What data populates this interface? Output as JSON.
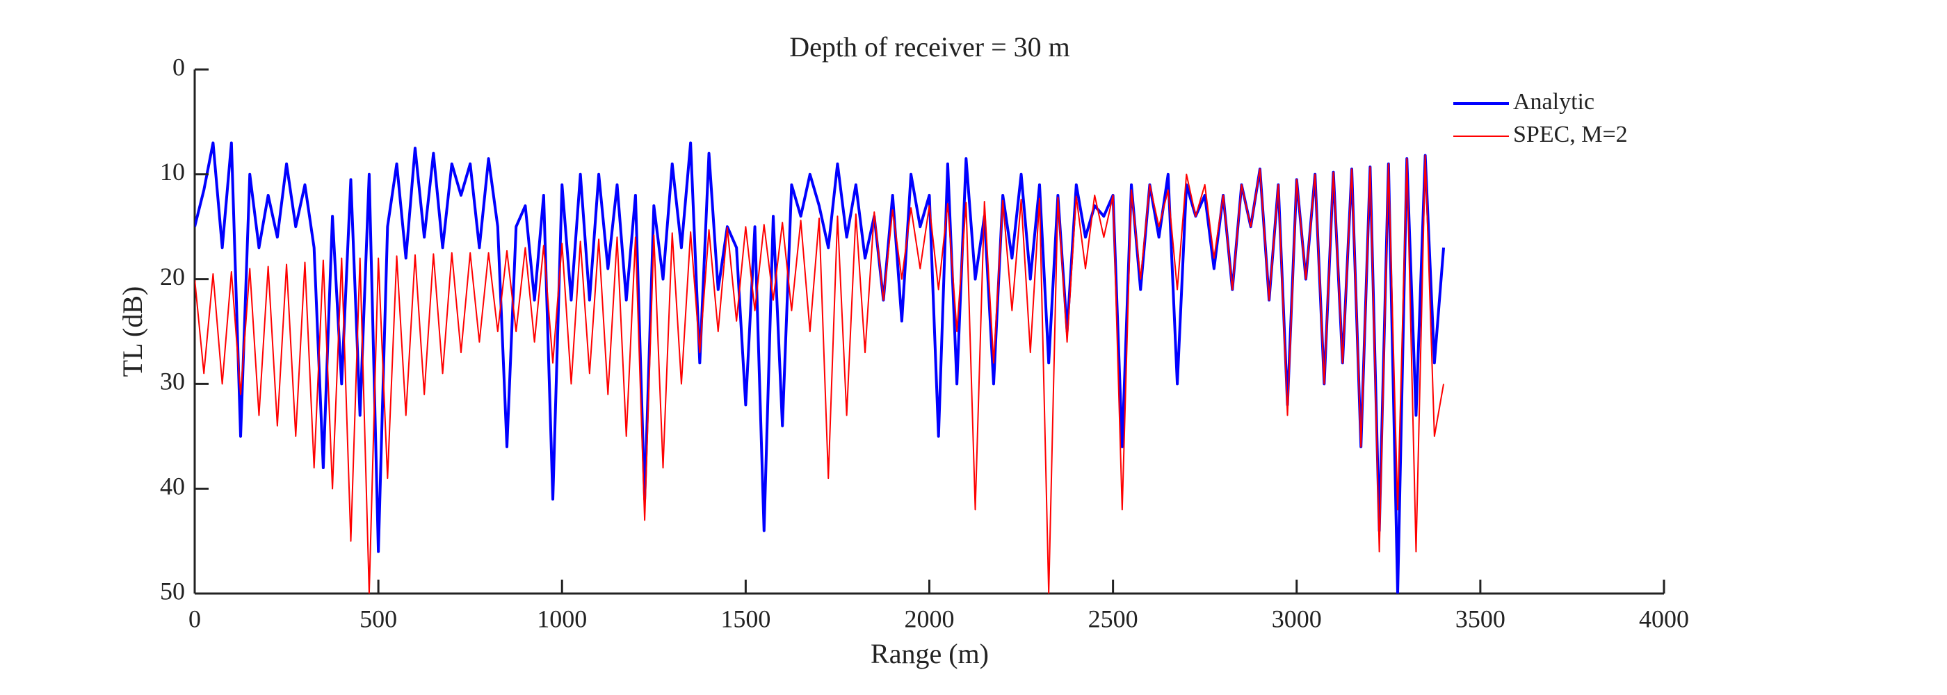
{
  "chart_data": {
    "type": "line",
    "title": "Depth of receiver = 30 m",
    "xlabel": "Range (m)",
    "ylabel": "TL (dB)",
    "x": [
      0,
      25,
      50,
      75,
      100,
      125,
      150,
      175,
      200,
      225,
      250,
      275,
      300,
      325,
      350,
      375,
      400,
      425,
      450,
      475,
      500,
      525,
      550,
      575,
      600,
      625,
      650,
      675,
      700,
      725,
      750,
      775,
      800,
      825,
      850,
      875,
      900,
      925,
      950,
      975,
      1000,
      1025,
      1050,
      1075,
      1100,
      1125,
      1150,
      1175,
      1200,
      1225,
      1250,
      1275,
      1300,
      1325,
      1350,
      1375,
      1400,
      1425,
      1450,
      1475,
      1500,
      1525,
      1550,
      1575,
      1600,
      1625,
      1650,
      1675,
      1700,
      1725,
      1750,
      1775,
      1800,
      1825,
      1850,
      1875,
      1900,
      1925,
      1950,
      1975,
      2000,
      2025,
      2050,
      2075,
      2100,
      2125,
      2150,
      2175,
      2200,
      2225,
      2250,
      2275,
      2300,
      2325,
      2350,
      2375,
      2400,
      2425,
      2450,
      2475,
      2500,
      2525,
      2550,
      2575,
      2600,
      2625,
      2650,
      2675,
      2700,
      2725,
      2750,
      2775,
      2800,
      2825,
      2850,
      2875,
      2900,
      2925,
      2950,
      2975,
      3000,
      3025,
      3050,
      3075,
      3100,
      3125,
      3150,
      3175,
      3200,
      3225,
      3250,
      3275,
      3300,
      3325,
      3350,
      3375,
      3400
    ],
    "series": [
      {
        "name": "Analytic",
        "color": "#0000ff",
        "line_width": 4,
        "values": [
          15,
          11.5,
          7,
          17,
          7,
          35,
          10,
          17,
          12,
          16,
          9,
          15,
          11,
          17,
          38,
          14,
          30,
          10.5,
          33,
          10,
          46,
          15,
          9,
          18,
          7.5,
          16,
          8,
          17,
          9,
          12,
          9,
          17,
          8.5,
          15,
          36,
          15,
          13,
          22,
          12,
          41,
          11,
          22,
          10,
          22,
          10,
          19,
          11,
          22,
          12,
          41,
          13,
          20,
          9,
          17,
          7,
          28,
          8,
          21,
          15,
          17,
          32,
          15,
          44,
          14,
          34,
          11,
          14,
          10,
          13,
          17,
          9,
          16,
          11,
          18,
          14,
          22,
          12,
          24,
          10,
          15,
          12,
          35,
          9,
          30,
          8.5,
          20,
          14,
          30,
          12,
          18,
          10,
          20,
          11,
          28,
          12,
          25,
          11,
          16,
          13,
          14,
          12,
          36,
          11,
          21,
          11,
          16,
          10,
          30,
          11,
          14,
          12,
          19,
          12,
          21,
          11,
          15,
          9.5,
          22,
          11,
          32,
          10.5,
          20,
          10,
          30,
          9.8,
          28,
          9.5,
          36,
          9.3,
          44,
          9,
          50,
          8.5,
          33,
          8.2,
          28,
          17
        ]
      },
      {
        "name": "SPEC, M=2",
        "color": "#ff0000",
        "line_width": 2,
        "values": [
          20,
          29,
          19.5,
          30,
          19.3,
          31,
          19,
          33,
          18.8,
          34,
          18.6,
          35,
          18.4,
          38,
          18.2,
          40,
          18,
          45,
          18,
          50,
          18,
          39,
          17.8,
          33,
          17.7,
          31,
          17.6,
          29,
          17.5,
          27,
          17.5,
          26,
          17.5,
          25,
          17.3,
          25,
          17,
          26,
          16.8,
          28,
          16.6,
          30,
          16.4,
          29,
          16.2,
          31,
          16,
          35,
          16,
          43,
          15.8,
          38,
          15.6,
          30,
          15.5,
          27,
          15.3,
          25,
          15.1,
          24,
          15,
          23,
          14.8,
          22,
          14.6,
          23,
          14.4,
          25,
          14.2,
          39,
          14,
          33,
          13.8,
          27,
          13.6,
          22,
          13.4,
          20,
          13.2,
          19,
          13,
          21,
          12.8,
          25,
          12.7,
          42,
          12.6,
          28,
          12.5,
          23,
          12.4,
          27,
          12.3,
          50,
          12.2,
          26,
          12.1,
          19,
          12,
          16,
          12,
          42,
          11.5,
          20,
          11,
          15,
          11.5,
          21,
          10,
          14,
          11,
          18,
          12,
          21,
          11,
          15,
          9.5,
          22,
          11,
          33,
          10.5,
          20,
          10,
          30,
          9.8,
          28,
          9.5,
          36,
          9.3,
          46,
          9,
          42,
          8.5,
          46,
          8.2,
          35,
          30
        ]
      }
    ],
    "xlim": [
      0,
      4000
    ],
    "xticks": [
      0,
      500,
      1000,
      1500,
      2000,
      2500,
      3000,
      3500,
      4000
    ],
    "ylim": [
      0,
      50
    ],
    "yticks": [
      0,
      10,
      20,
      30,
      40,
      50
    ],
    "y_reversed": true,
    "grid": false,
    "legend": "northeast"
  }
}
